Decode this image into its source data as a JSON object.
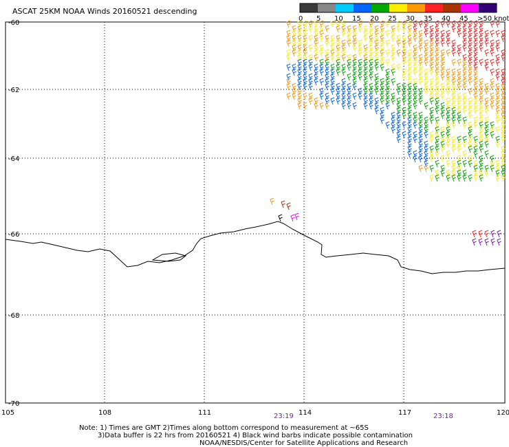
{
  "title": "ASCAT 25KM NOAA Winds 20160521 descending",
  "legend": {
    "ticks": [
      "0",
      "5",
      "10",
      "15",
      "20",
      "25",
      "30",
      "35",
      "40",
      "45",
      ">50 knots"
    ],
    "colors": [
      "#3a3a3a",
      "#888888",
      "#00ccff",
      "#0066ff",
      "#00aa00",
      "#ffee00",
      "#ff9900",
      "#ff2222",
      "#aa3300",
      "#ff00ff",
      "#330077"
    ]
  },
  "axes": {
    "lat_labels": [
      "-60",
      "-62",
      "-64",
      "-66",
      "-68",
      "-70"
    ],
    "lon_labels": [
      "105",
      "108",
      "111",
      "114",
      "117",
      "120"
    ]
  },
  "times": [
    "23:19",
    "23:18"
  ],
  "notes": [
    "Note: 1) Times are GMT 2)Times along bottom correspond to measurement at ~65S",
    "3)Data buffer is 22 hrs from 20160521 4) Black wind barbs indicate possible contamination",
    "NOAA/NESDIS/Center for Satellite Applications and Research"
  ]
}
